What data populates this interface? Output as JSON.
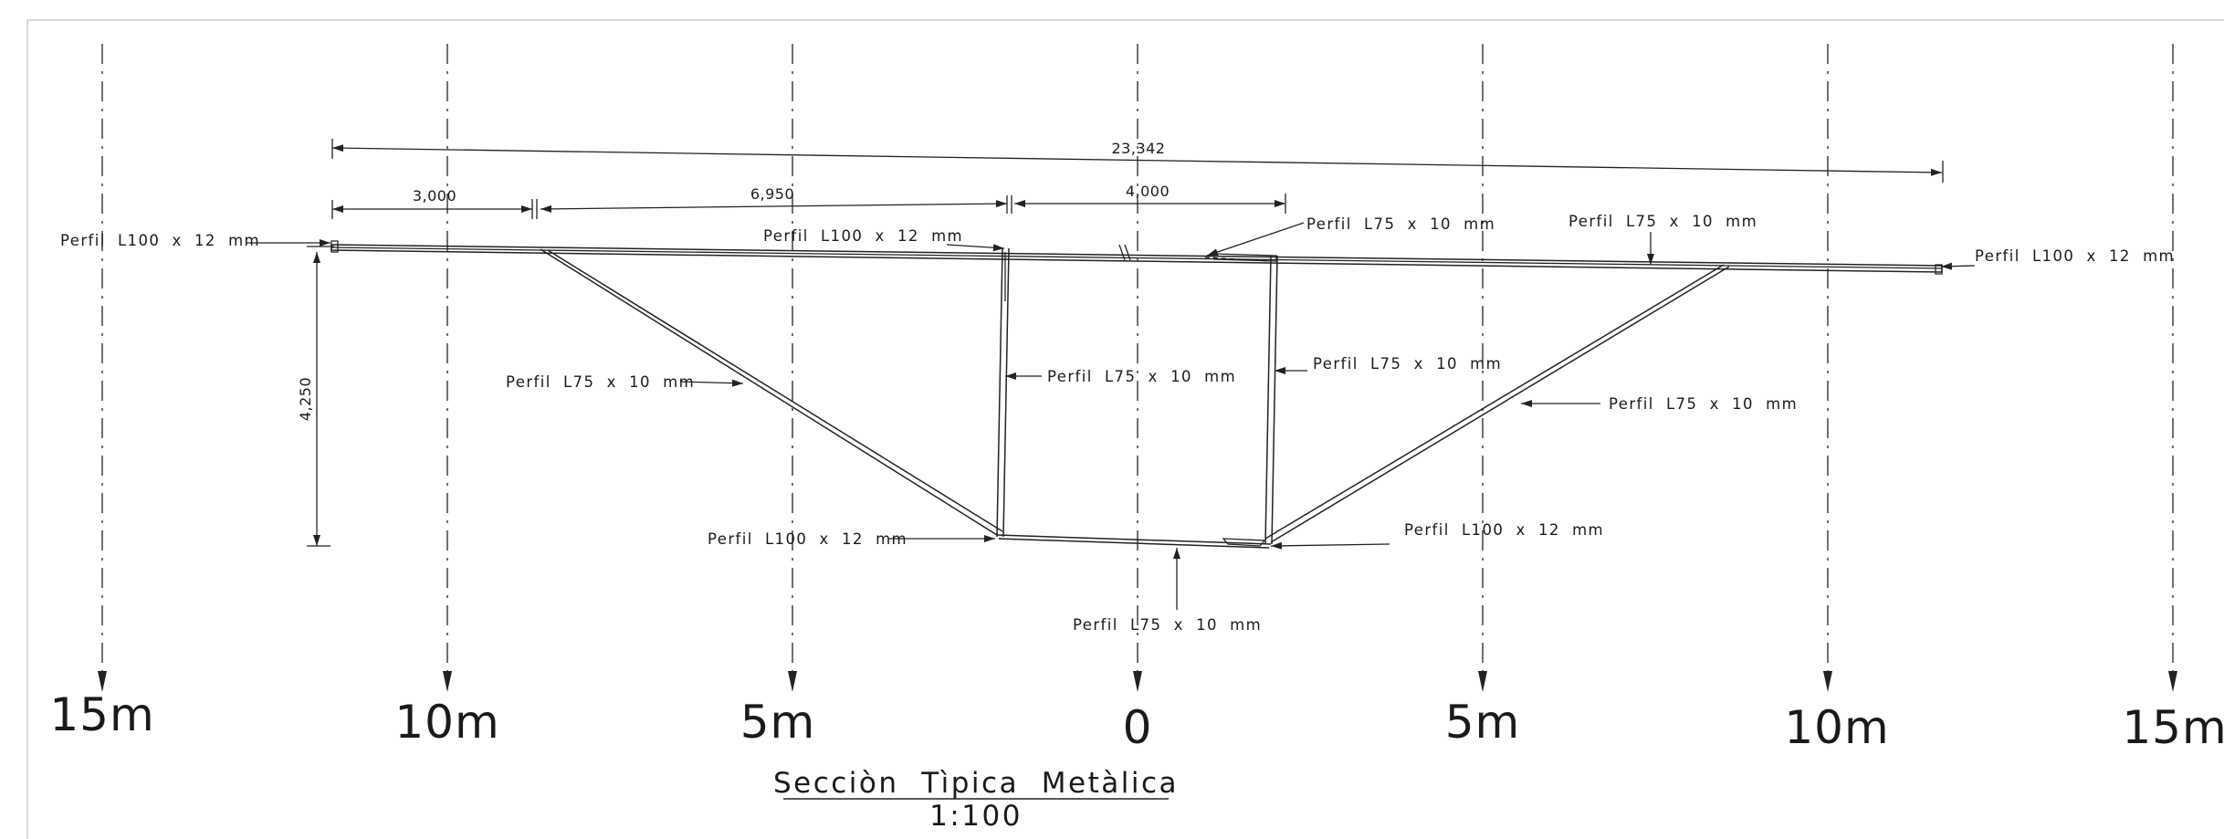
{
  "title": "Secciòn  Tìpica  Metàlica",
  "scale": "1:100",
  "axis_labels": [
    "15m",
    "10m",
    "5m",
    "0",
    "5m",
    "10m",
    "15m"
  ],
  "dimensions": {
    "total_width": "23,342",
    "segment_left": "3,000",
    "segment_middle": "6,950",
    "segment_right": "4,000",
    "height": "4,250"
  },
  "annotations": {
    "top_left_chord": "Perfil  L100  x  12  mm",
    "top_center_chord": "Perfil  L100  x  12  mm",
    "top_center_brace": "Perfil  L75  x  10  mm",
    "top_right_brace": "Perfil  L75  x  10  mm",
    "top_right_chord": "Perfil  L100  x  12  mm",
    "left_diagonal": "Perfil  L75  x  10  mm",
    "left_vertical": "Perfil  L75  x  10  mm",
    "right_vertical": "Perfil  L75  x  10  mm",
    "right_diagonal": "Perfil  L75  x  10  mm",
    "bottom_left_chord": "Perfil  L100  x  12  mm",
    "bottom_right_chord": "Perfil  L100  x  12  mm",
    "bottom_brace": "Perfil  L75  x  10  mm"
  }
}
